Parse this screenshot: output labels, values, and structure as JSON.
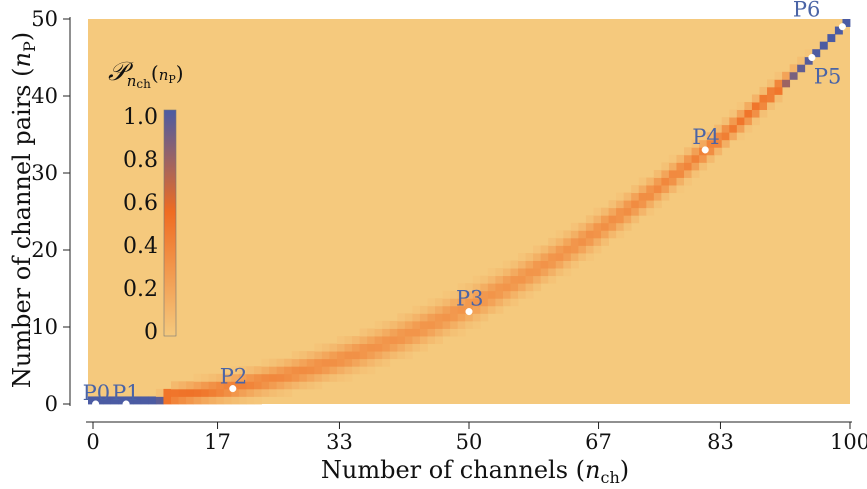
{
  "chart_data": {
    "type": "heatmap",
    "title": "",
    "xlabel": "Number of channels (",
    "xlabel_var": "n",
    "xlabel_sub": "ch",
    "xlabel_close": ")",
    "ylabel": "Number of channel pairs (",
    "ylabel_var": "n",
    "ylabel_sub": "P",
    "ylabel_close": ")",
    "xlim": [
      0,
      100
    ],
    "ylim": [
      0,
      50
    ],
    "x_ticks": [
      0,
      17,
      33,
      50,
      67,
      83,
      100
    ],
    "y_ticks": [
      0,
      10,
      20,
      30,
      40,
      50
    ],
    "grid": false,
    "colorbar": {
      "label_symbol": "𝒫",
      "label_sub": "n",
      "label_sub2": "ch",
      "label_arg_open": "(",
      "label_arg_var": "n",
      "label_arg_sub": "P",
      "label_arg_close": ")",
      "range": [
        0,
        1
      ],
      "ticks": [
        "0",
        "0.2",
        "0.4",
        "0.6",
        "0.8",
        "1.0"
      ],
      "tick_values": [
        0,
        0.2,
        0.4,
        0.6,
        0.8,
        1.0
      ],
      "placement": "inside-top-left"
    },
    "colors": {
      "low": "#f5c97d",
      "mid": "#ef6c22",
      "high": "#4b5ba3"
    },
    "points": [
      {
        "label": "P0",
        "x": 1,
        "y": 0
      },
      {
        "label": "P1",
        "x": 5,
        "y": 0
      },
      {
        "label": "P2",
        "x": 19,
        "y": 2
      },
      {
        "label": "P3",
        "x": 50,
        "y": 12
      },
      {
        "label": "P4",
        "x": 81,
        "y": 33
      },
      {
        "label": "P5",
        "x": 95,
        "y": 45
      },
      {
        "label": "P6",
        "x": 99,
        "y": 49
      }
    ]
  }
}
